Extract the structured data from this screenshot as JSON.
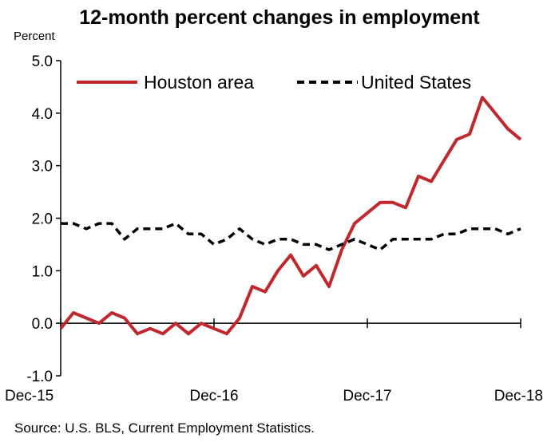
{
  "chart_data": {
    "type": "line",
    "title": "12-month percent changes in employment",
    "ylabel": "Percent",
    "xlabel": "",
    "source": "Source: U.S. BLS, Current Employment Statistics.",
    "ylim": [
      -1.0,
      5.0
    ],
    "yticks": [
      "-1.0",
      "0.0",
      "1.0",
      "2.0",
      "3.0",
      "4.0",
      "5.0"
    ],
    "xticks": [
      "Dec-15",
      "Dec-16",
      "Dec-17",
      "Dec-18"
    ],
    "grid": false,
    "legend_position": "top",
    "x": [
      "Dec-15",
      "Jan-16",
      "Feb-16",
      "Mar-16",
      "Apr-16",
      "May-16",
      "Jun-16",
      "Jul-16",
      "Aug-16",
      "Sep-16",
      "Oct-16",
      "Nov-16",
      "Dec-16",
      "Jan-17",
      "Feb-17",
      "Mar-17",
      "Apr-17",
      "May-17",
      "Jun-17",
      "Jul-17",
      "Aug-17",
      "Sep-17",
      "Oct-17",
      "Nov-17",
      "Dec-17",
      "Jan-18",
      "Feb-18",
      "Mar-18",
      "Apr-18",
      "May-18",
      "Jun-18",
      "Jul-18",
      "Aug-18",
      "Sep-18",
      "Oct-18",
      "Nov-18",
      "Dec-18"
    ],
    "series": [
      {
        "name": "Houston area",
        "color": "#c0282d",
        "style": "solid",
        "values": [
          -0.1,
          0.2,
          0.1,
          0.0,
          0.2,
          0.1,
          -0.2,
          -0.1,
          -0.2,
          0.0,
          -0.2,
          0.0,
          -0.1,
          -0.2,
          0.1,
          0.7,
          0.6,
          1.0,
          1.3,
          0.9,
          1.1,
          0.7,
          1.4,
          1.9,
          2.1,
          2.3,
          2.3,
          2.2,
          2.8,
          2.7,
          3.1,
          3.5,
          3.6,
          4.3,
          4.0,
          3.7,
          3.5
        ]
      },
      {
        "name": "United States",
        "color": "#000000",
        "style": "dashed",
        "values": [
          1.9,
          1.9,
          1.8,
          1.9,
          1.9,
          1.6,
          1.8,
          1.8,
          1.8,
          1.9,
          1.7,
          1.7,
          1.5,
          1.6,
          1.8,
          1.6,
          1.5,
          1.6,
          1.6,
          1.5,
          1.5,
          1.4,
          1.5,
          1.6,
          1.5,
          1.4,
          1.6,
          1.6,
          1.6,
          1.6,
          1.7,
          1.7,
          1.8,
          1.8,
          1.8,
          1.7,
          1.8
        ]
      }
    ]
  }
}
